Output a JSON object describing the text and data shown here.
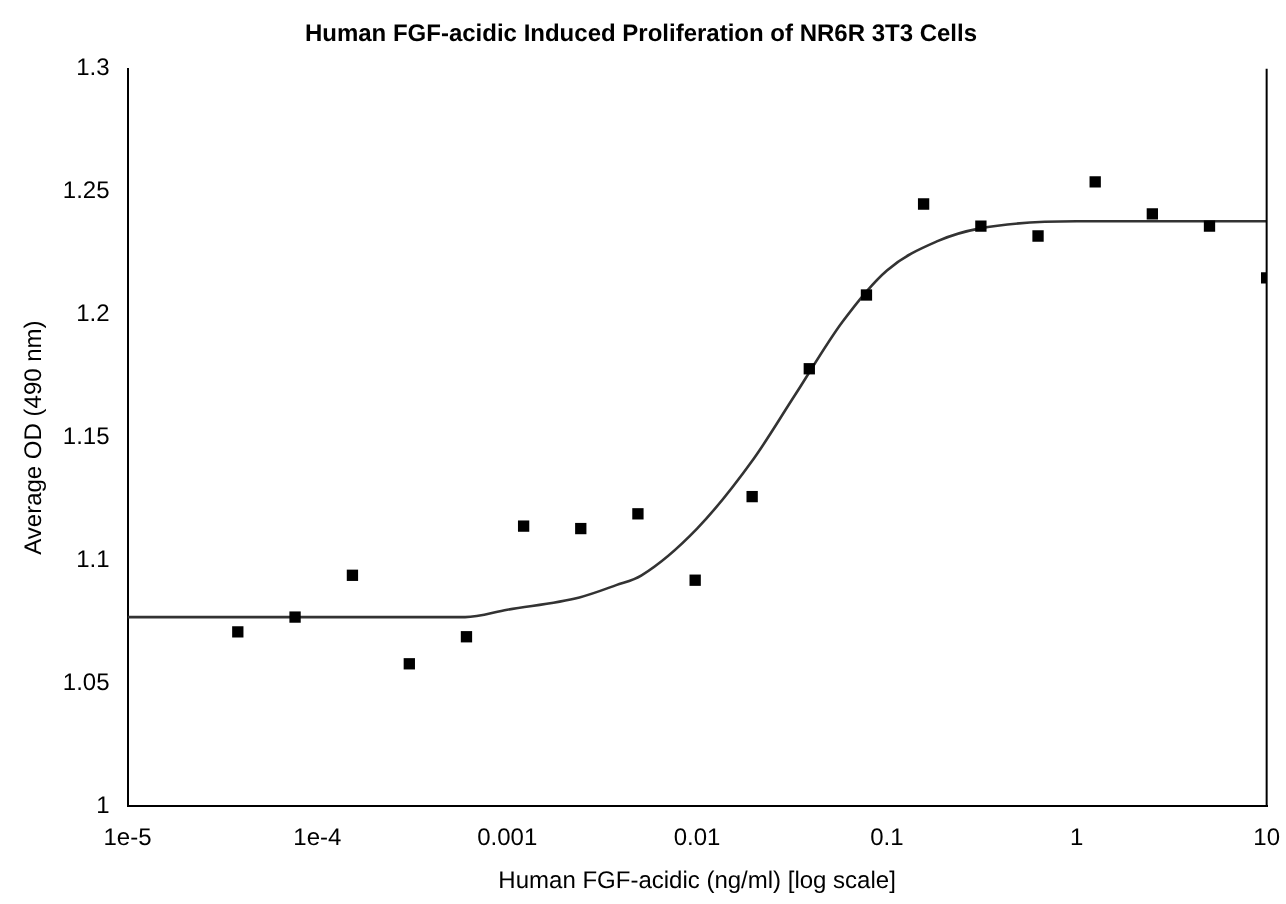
{
  "chart_data": {
    "type": "scatter",
    "title": "Human FGF-acidic Induced Proliferation of NR6R 3T3 Cells",
    "xlabel": "Human FGF-acidic (ng/ml) [log scale]",
    "ylabel": "Average OD (490 nm)",
    "log": "x",
    "xlim": [
      1e-05,
      10
    ],
    "xticks": [
      {
        "value": 1e-05,
        "label": "1e-5"
      },
      {
        "value": 0.0001,
        "label": "1e-4"
      },
      0.001,
      0.01,
      0.1,
      1,
      10
    ],
    "ylim": [
      1,
      1.3
    ],
    "yticks": [
      1,
      1.05,
      1.1,
      1.15,
      1.2,
      1.25,
      1.3
    ],
    "grid": false,
    "legend": false,
    "marker": "square",
    "series": [
      {
        "color": "#000000",
        "x": [
          3.81e-05,
          7.63e-05,
          0.000153,
          0.000305,
          0.00061,
          0.00122,
          0.00244,
          0.00488,
          0.00977,
          0.0195,
          0.039,
          0.078,
          0.156,
          0.3125,
          0.625,
          1.25,
          2.5,
          5,
          10
        ],
        "values": [
          1.071,
          1.077,
          1.094,
          1.058,
          1.069,
          1.114,
          1.113,
          1.119,
          1.092,
          1.126,
          1.178,
          1.208,
          1.245,
          1.236,
          1.232,
          1.254,
          1.241,
          1.236,
          1.215
        ]
      },
      {
        "type": "line",
        "color": "#333333",
        "marker": "none",
        "x": [
          1e-05,
          0.0001,
          0.0006,
          0.001,
          0.0024,
          0.00375,
          0.0051,
          0.01,
          0.0197,
          0.0326,
          0.0582,
          0.1,
          0.186,
          0.305,
          1,
          10
        ],
        "values": [
          1.077,
          1.077,
          1.077,
          1.08,
          1.085,
          1.09,
          1.094,
          1.113,
          1.141,
          1.167,
          1.197,
          1.218,
          1.23,
          1.235,
          1.238,
          1.238
        ]
      }
    ]
  }
}
